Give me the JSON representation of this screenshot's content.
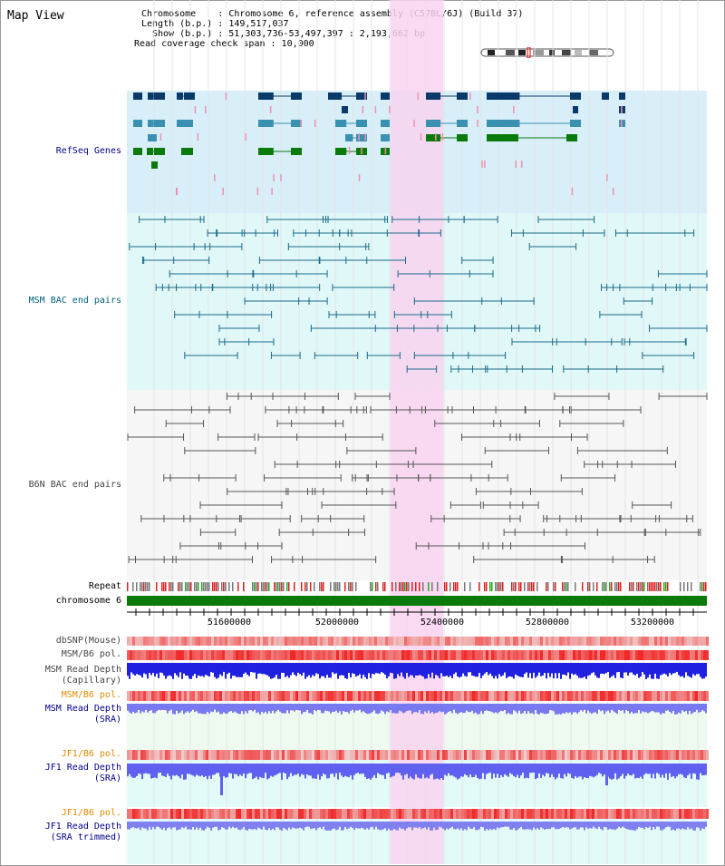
{
  "page_title": "Map View",
  "info": {
    "chromosome": "Chromosome    : Chromosome 6, reference assembly (C57BL/6J) (Build 37)",
    "length": "Length (b.p.) : 149,517,037",
    "show": "Show (b.p.) : 51,303,736-53,497,397 : 2,193,662 bp",
    "coverage": "Read coverage check span : 10,000"
  },
  "tracks": {
    "refseq": "RefSeq Genes",
    "msm_bac": "MSM BAC end pairs",
    "b6n_bac": "B6N BAC end pairs",
    "repeat": "Repeat",
    "chromosome": "chromosome 6",
    "dbsnp": "dbSNP(Mouse)",
    "msm_b6_pol_1": "MSM/B6 pol.",
    "msm_depth_cap": "MSM Read Depth\n(Capillary)",
    "msm_b6_pol_2": "MSM/B6 pol.",
    "msm_depth_sra": "MSM Read Depth\n(SRA)",
    "jf1_b6_pol_1": "JF1/B6 pol.",
    "jf1_depth_sra": "JF1 Read Depth\n(SRA)",
    "jf1_b6_pol_2": "JF1/B6 pol.",
    "jf1_depth_trim": "JF1 Read Depth\n(SRA trimmed)"
  },
  "axis": {
    "ticks": [
      "51600000",
      "52000000",
      "52400000",
      "52800000",
      "53200000"
    ]
  },
  "colors": {
    "refseq_bg": "#d8eef9",
    "msm_bg": "#e0f8f8",
    "b6n_bg": "#f6f6f6",
    "highlight": "#f8d4f0",
    "gene_dark": "#0a3a6a",
    "gene_mid": "#3a90b0",
    "gene_green": "#0a7a0a",
    "gene_pink": "#f090b0",
    "msm_line": "#1a6a8a",
    "b6n_line": "#555555",
    "chromosome": "#0a7a0a",
    "label_black": "#000000",
    "label_navy": "#00008b",
    "label_teal": "#00607a",
    "label_gray": "#444444",
    "label_orange": "#e08a00"
  }
}
